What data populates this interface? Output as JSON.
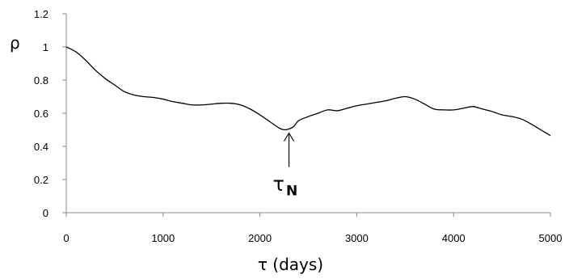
{
  "chart_data": {
    "type": "line",
    "title": "",
    "xlabel": "τ (days)",
    "ylabel": "ρ",
    "xlim": [
      0,
      5000
    ],
    "ylim": [
      0,
      1.2
    ],
    "x_ticks": [
      "0",
      "1000",
      "2000",
      "3000",
      "4000",
      "5000"
    ],
    "y_ticks": [
      "0",
      "0.2",
      "0.4",
      "0.6",
      "0.8",
      "1",
      "1.2"
    ],
    "grid": false,
    "legend": "none",
    "series": [
      {
        "color": "#000000",
        "x": [
          0,
          100,
          200,
          300,
          400,
          500,
          600,
          700,
          800,
          900,
          1000,
          1100,
          1200,
          1300,
          1400,
          1500,
          1600,
          1700,
          1800,
          1900,
          2000,
          2100,
          2200,
          2250,
          2300,
          2350,
          2400,
          2500,
          2600,
          2700,
          2800,
          2900,
          3000,
          3100,
          3200,
          3300,
          3400,
          3500,
          3600,
          3700,
          3800,
          3900,
          4000,
          4100,
          4200,
          4300,
          4400,
          4500,
          4600,
          4700,
          4800,
          4900,
          5000
        ],
        "y": [
          1.0,
          0.97,
          0.92,
          0.86,
          0.81,
          0.77,
          0.73,
          0.71,
          0.7,
          0.695,
          0.685,
          0.67,
          0.66,
          0.65,
          0.65,
          0.655,
          0.66,
          0.66,
          0.65,
          0.625,
          0.59,
          0.55,
          0.51,
          0.5,
          0.505,
          0.52,
          0.555,
          0.58,
          0.6,
          0.62,
          0.615,
          0.63,
          0.645,
          0.655,
          0.665,
          0.675,
          0.69,
          0.7,
          0.685,
          0.655,
          0.625,
          0.62,
          0.62,
          0.63,
          0.64,
          0.625,
          0.61,
          0.59,
          0.58,
          0.565,
          0.535,
          0.5,
          0.465
        ]
      }
    ],
    "annotations": [
      {
        "text": "τ",
        "subscript": "N",
        "x": 2300,
        "y": 0.5,
        "marker": "arrow-up"
      }
    ]
  }
}
